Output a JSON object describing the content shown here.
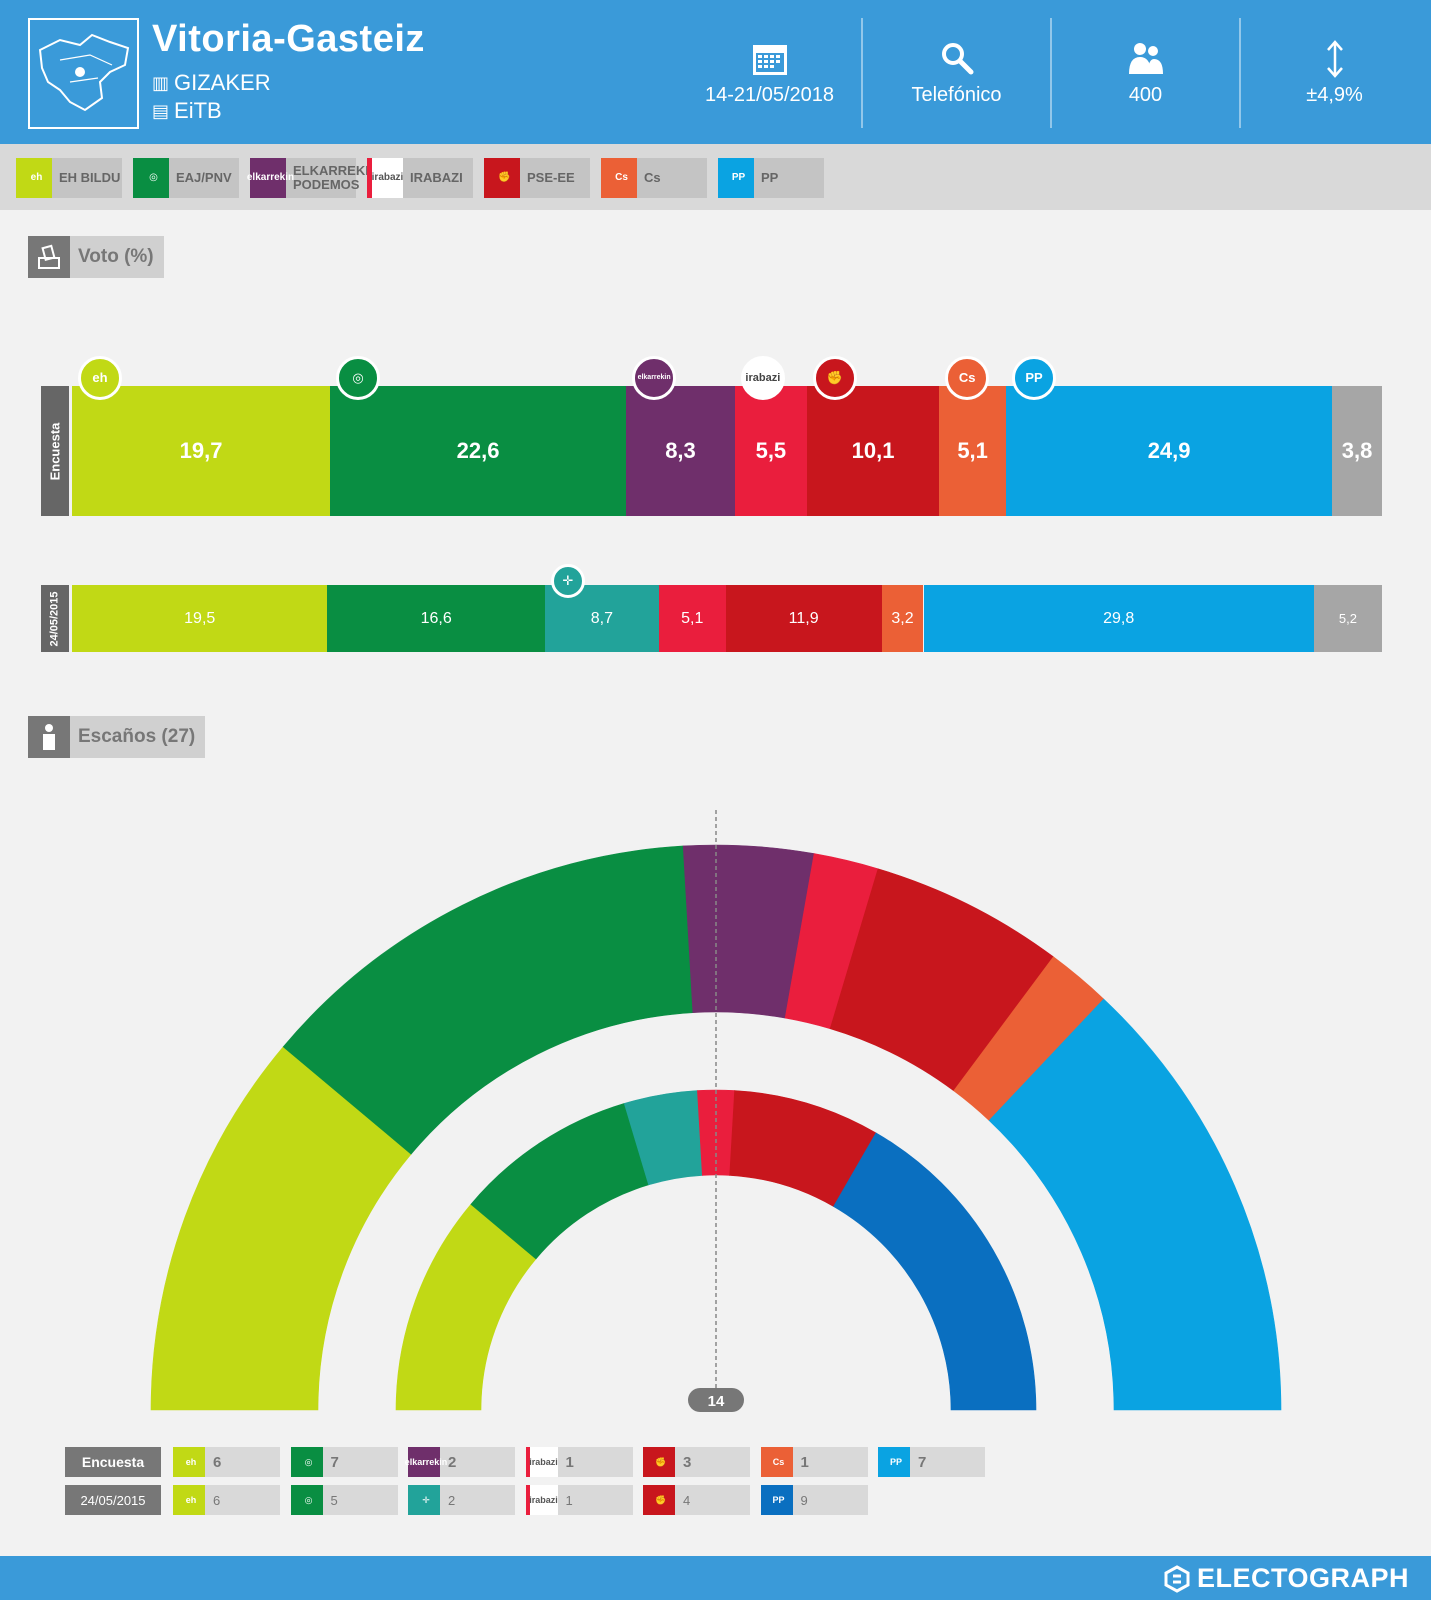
{
  "header": {
    "city": "Vitoria-Gasteiz",
    "pollster": "GIZAKER",
    "media": "EiTB",
    "stats": [
      {
        "icon": "calendar-icon",
        "value": "14-21/05/2018"
      },
      {
        "icon": "search-icon",
        "value": "Telefónico"
      },
      {
        "icon": "people-icon",
        "value": "400"
      },
      {
        "icon": "vertical-arrows-icon",
        "value": "±4,9%"
      }
    ]
  },
  "parties": [
    {
      "id": "bildu",
      "name": "EH BILDU",
      "color": "#c1d915",
      "logo": "eh\nbildu"
    },
    {
      "id": "pnv",
      "name": "EAJ/PNV",
      "color": "#098e42",
      "logo": "◎"
    },
    {
      "id": "podemos",
      "name": "ELKARREKIN\nPODEMOS",
      "color": "#6f2f6b",
      "logo": "elkarrekin\nPODEMOS"
    },
    {
      "id": "irabazi",
      "name": "IRABAZI",
      "color": "#ea1e3d",
      "logo": "irabazi"
    },
    {
      "id": "psoe",
      "name": "PSE-EE",
      "color": "#c8161d",
      "logo": "✊"
    },
    {
      "id": "cs",
      "name": "Cs",
      "color": "#eb6036",
      "logo": "Cs"
    },
    {
      "id": "pp",
      "name": "PP",
      "color": "#0aa3e2",
      "logo": "PP"
    }
  ],
  "sections": {
    "vote_title": "Voto (%)",
    "seats_title": "Escaños (27)"
  },
  "rows": {
    "survey_label": "Encuesta",
    "previous_label": "24/05/2015"
  },
  "majority_label": "14",
  "brand": "ELECTOGRAPH",
  "chart_data": [
    {
      "type": "bar",
      "stacked": true,
      "orientation": "horizontal",
      "categories": [
        "Encuesta",
        "24/05/2015"
      ],
      "series": [
        {
          "name": "EH BILDU",
          "color": "#c1d915",
          "values": [
            19.7,
            19.5
          ],
          "labels": [
            "19,7",
            "19,5"
          ]
        },
        {
          "name": "EAJ/PNV",
          "color": "#098e42",
          "values": [
            22.6,
            16.6
          ],
          "labels": [
            "22,6",
            "16,6"
          ]
        },
        {
          "name": "ELKARREKIN PODEMOS",
          "color": "#6f2f6b",
          "values": [
            8.3,
            null
          ],
          "labels": [
            "8,3",
            ""
          ]
        },
        {
          "name": "",
          "color": "#22a39a",
          "values": [
            null,
            8.7
          ],
          "labels": [
            "",
            "8,7"
          ]
        },
        {
          "name": "IRABAZI",
          "color": "#ea1e3d",
          "values": [
            5.5,
            5.1
          ],
          "labels": [
            "5,5",
            "5,1"
          ]
        },
        {
          "name": "PSE-EE",
          "color": "#c8161d",
          "values": [
            10.1,
            11.9
          ],
          "labels": [
            "10,1",
            "11,9"
          ]
        },
        {
          "name": "Cs",
          "color": "#eb6036",
          "values": [
            5.1,
            3.2
          ],
          "labels": [
            "5,1",
            "3,2"
          ]
        },
        {
          "name": "PP",
          "color": "#0aa3e2",
          "values": [
            24.9,
            29.8
          ],
          "labels": [
            "24,9",
            "29,8"
          ]
        },
        {
          "name": "",
          "color": "#a6a6a6",
          "values": [
            3.8,
            5.2
          ],
          "labels": [
            "3,8",
            "5,2"
          ]
        }
      ]
    },
    {
      "type": "pie",
      "shape": "hemicycle",
      "total_seats": 27,
      "majority": 14,
      "rings": [
        {
          "name": "Encuesta",
          "seats": [
            {
              "party": "EH BILDU",
              "color": "#c1d915",
              "value": 6,
              "label": "6"
            },
            {
              "party": "EAJ/PNV",
              "color": "#098e42",
              "value": 7,
              "label": "7"
            },
            {
              "party": "ELKARREKIN PODEMOS",
              "color": "#6f2f6b",
              "value": 2,
              "label": "2"
            },
            {
              "party": "IRABAZI",
              "color": "#ea1e3d",
              "value": 1,
              "label": "1"
            },
            {
              "party": "PSE-EE",
              "color": "#c8161d",
              "value": 3,
              "label": "3"
            },
            {
              "party": "Cs",
              "color": "#eb6036",
              "value": 1,
              "label": "1"
            },
            {
              "party": "PP",
              "color": "#0aa3e2",
              "value": 7,
              "label": "7"
            }
          ]
        },
        {
          "name": "24/05/2015",
          "seats": [
            {
              "party": "EH BILDU",
              "color": "#c1d915",
              "value": 6,
              "label": "6"
            },
            {
              "party": "EAJ/PNV",
              "color": "#098e42",
              "value": 5,
              "label": "5"
            },
            {
              "party": "",
              "color": "#22a39a",
              "value": 2,
              "label": "2"
            },
            {
              "party": "IRABAZI",
              "color": "#ea1e3d",
              "value": 1,
              "label": "1"
            },
            {
              "party": "PSE-EE",
              "color": "#c8161d",
              "value": 4,
              "label": "4"
            },
            {
              "party": "PP",
              "color": "#0a6fc0",
              "value": 9,
              "label": "9"
            }
          ]
        }
      ]
    }
  ]
}
